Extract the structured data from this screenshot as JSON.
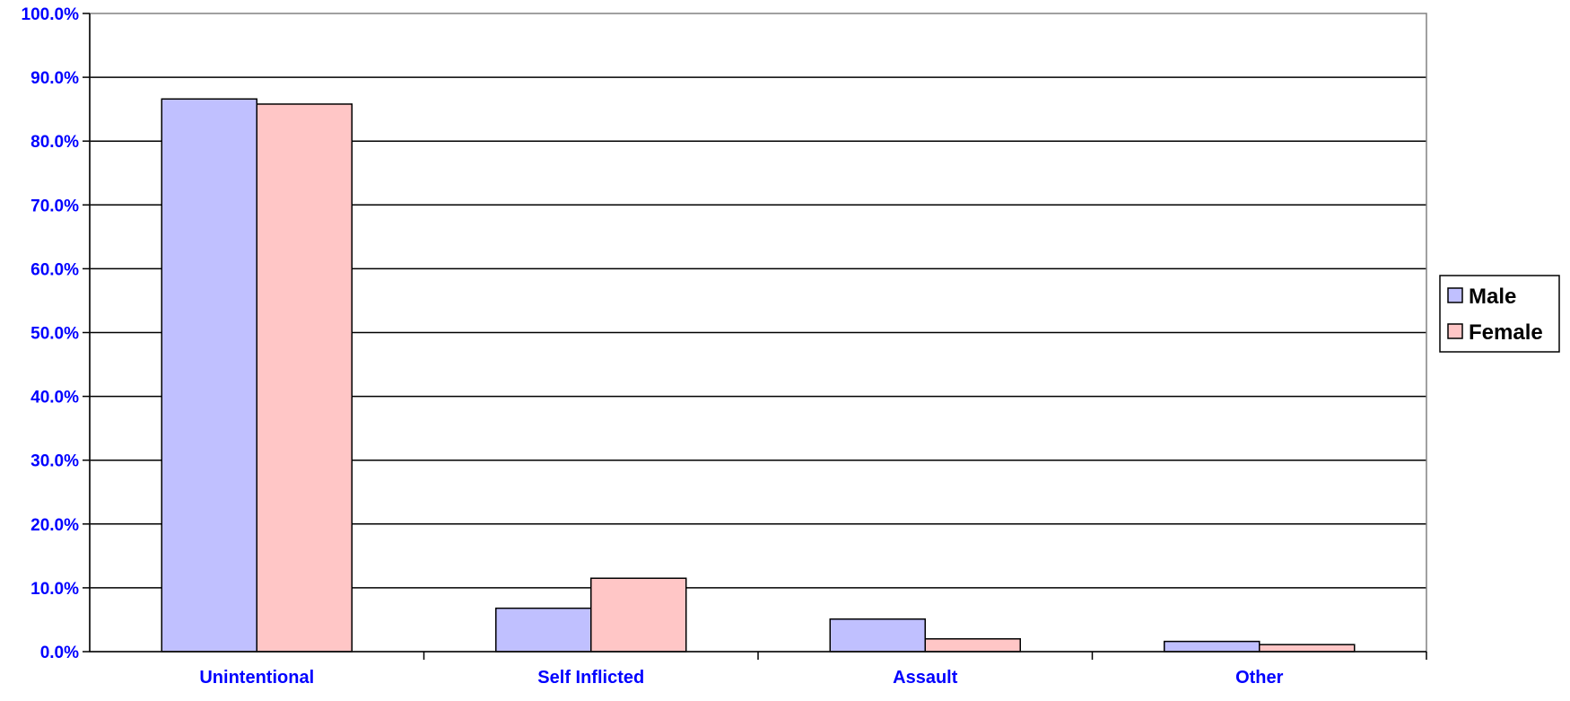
{
  "colors": {
    "axis_label": "#0000ff",
    "gridline": "#000000",
    "plot_border": "#808080",
    "bar_outline": "#000000",
    "legend_border": "#000000"
  },
  "chart_data": {
    "type": "bar",
    "title": "",
    "xlabel": "",
    "ylabel": "",
    "categories": [
      "Unintentional",
      "Self Inflicted",
      "Assault",
      "Other"
    ],
    "series": [
      {
        "name": "Male",
        "color": "#c0c0ff",
        "values": [
          86.6,
          6.8,
          5.1,
          1.6
        ]
      },
      {
        "name": "Female",
        "color": "#ffc6c6",
        "values": [
          85.8,
          11.5,
          2.0,
          1.1
        ]
      }
    ],
    "ylim": [
      0,
      100
    ],
    "yticks": [
      "0.0%",
      "10.0%",
      "20.0%",
      "30.0%",
      "40.0%",
      "50.0%",
      "60.0%",
      "70.0%",
      "80.0%",
      "90.0%",
      "100.0%"
    ],
    "grid": true,
    "legend_position": "right"
  }
}
